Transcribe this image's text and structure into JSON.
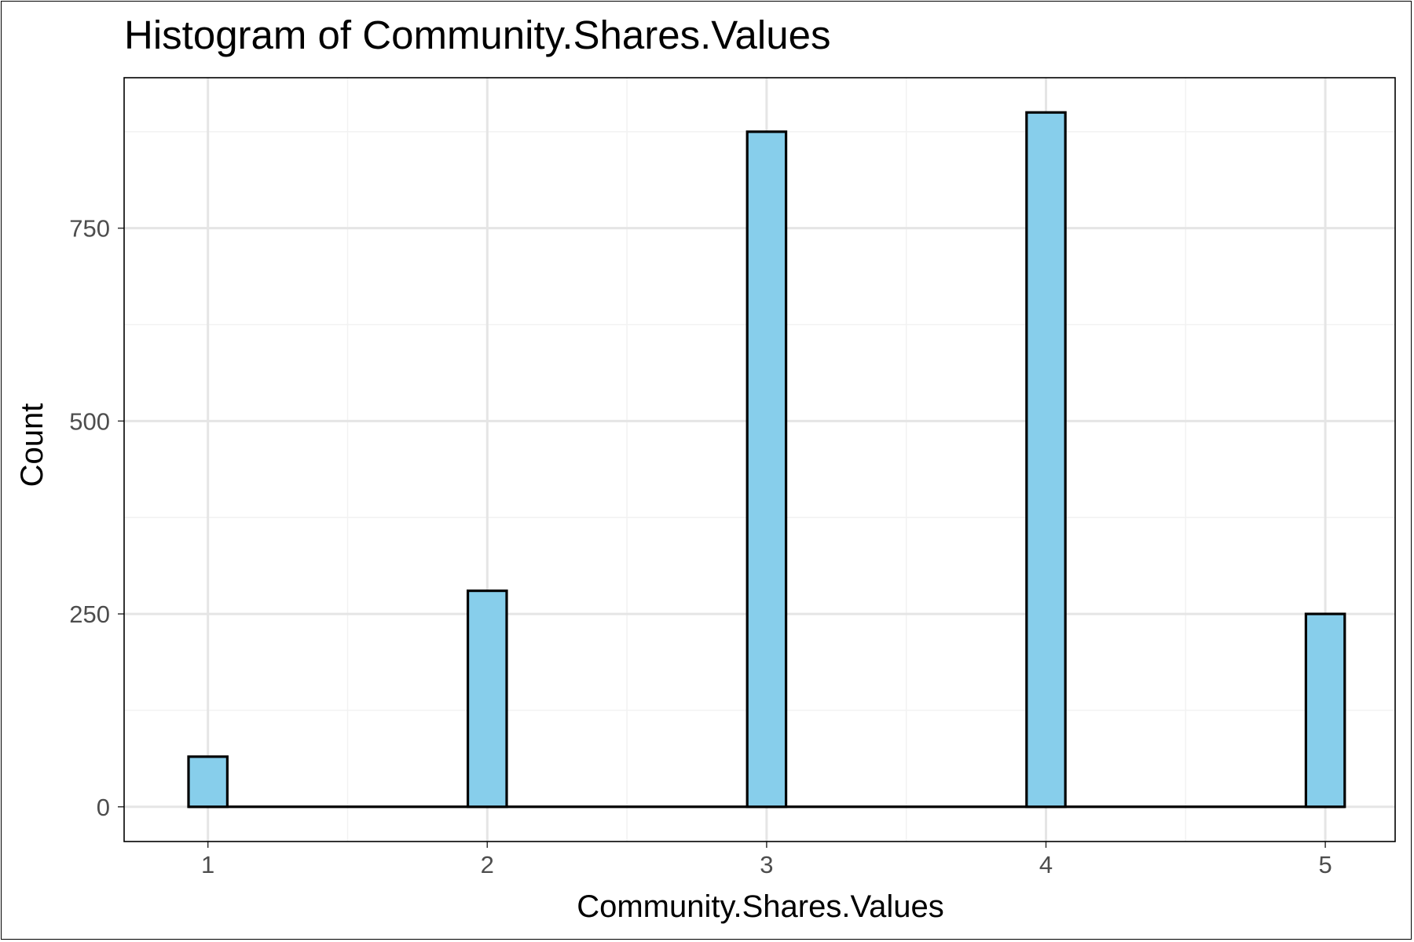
{
  "chart_data": {
    "type": "bar",
    "title": "Histogram of Community.Shares.Values",
    "xlabel": "Community.Shares.Values",
    "ylabel": "Count",
    "x": [
      1,
      2,
      3,
      4,
      5
    ],
    "values": [
      65,
      280,
      875,
      900,
      250
    ],
    "xlim": [
      0.7,
      5.25
    ],
    "ylim": [
      -45,
      945
    ],
    "x_ticks": [
      1,
      2,
      3,
      4,
      5
    ],
    "x_tick_labels": [
      "1",
      "2",
      "3",
      "4",
      "5"
    ],
    "y_ticks": [
      0,
      250,
      500,
      750
    ],
    "y_tick_labels": [
      "0",
      "250",
      "500",
      "750"
    ],
    "x_minor_ticks": [
      1.5,
      2.5,
      3.5,
      4.5
    ],
    "y_minor_ticks": [
      125,
      375,
      625,
      875
    ],
    "bin_width": 0.1389,
    "grid": true,
    "legend": "none",
    "colors": {
      "bar_fill": "#87CEEB",
      "bar_outline": "#000000",
      "panel_border": "#000000",
      "grid_major": "#e5e5e5",
      "grid_minor": "#f2f2f2",
      "tick_label": "#4d4d4d"
    }
  }
}
